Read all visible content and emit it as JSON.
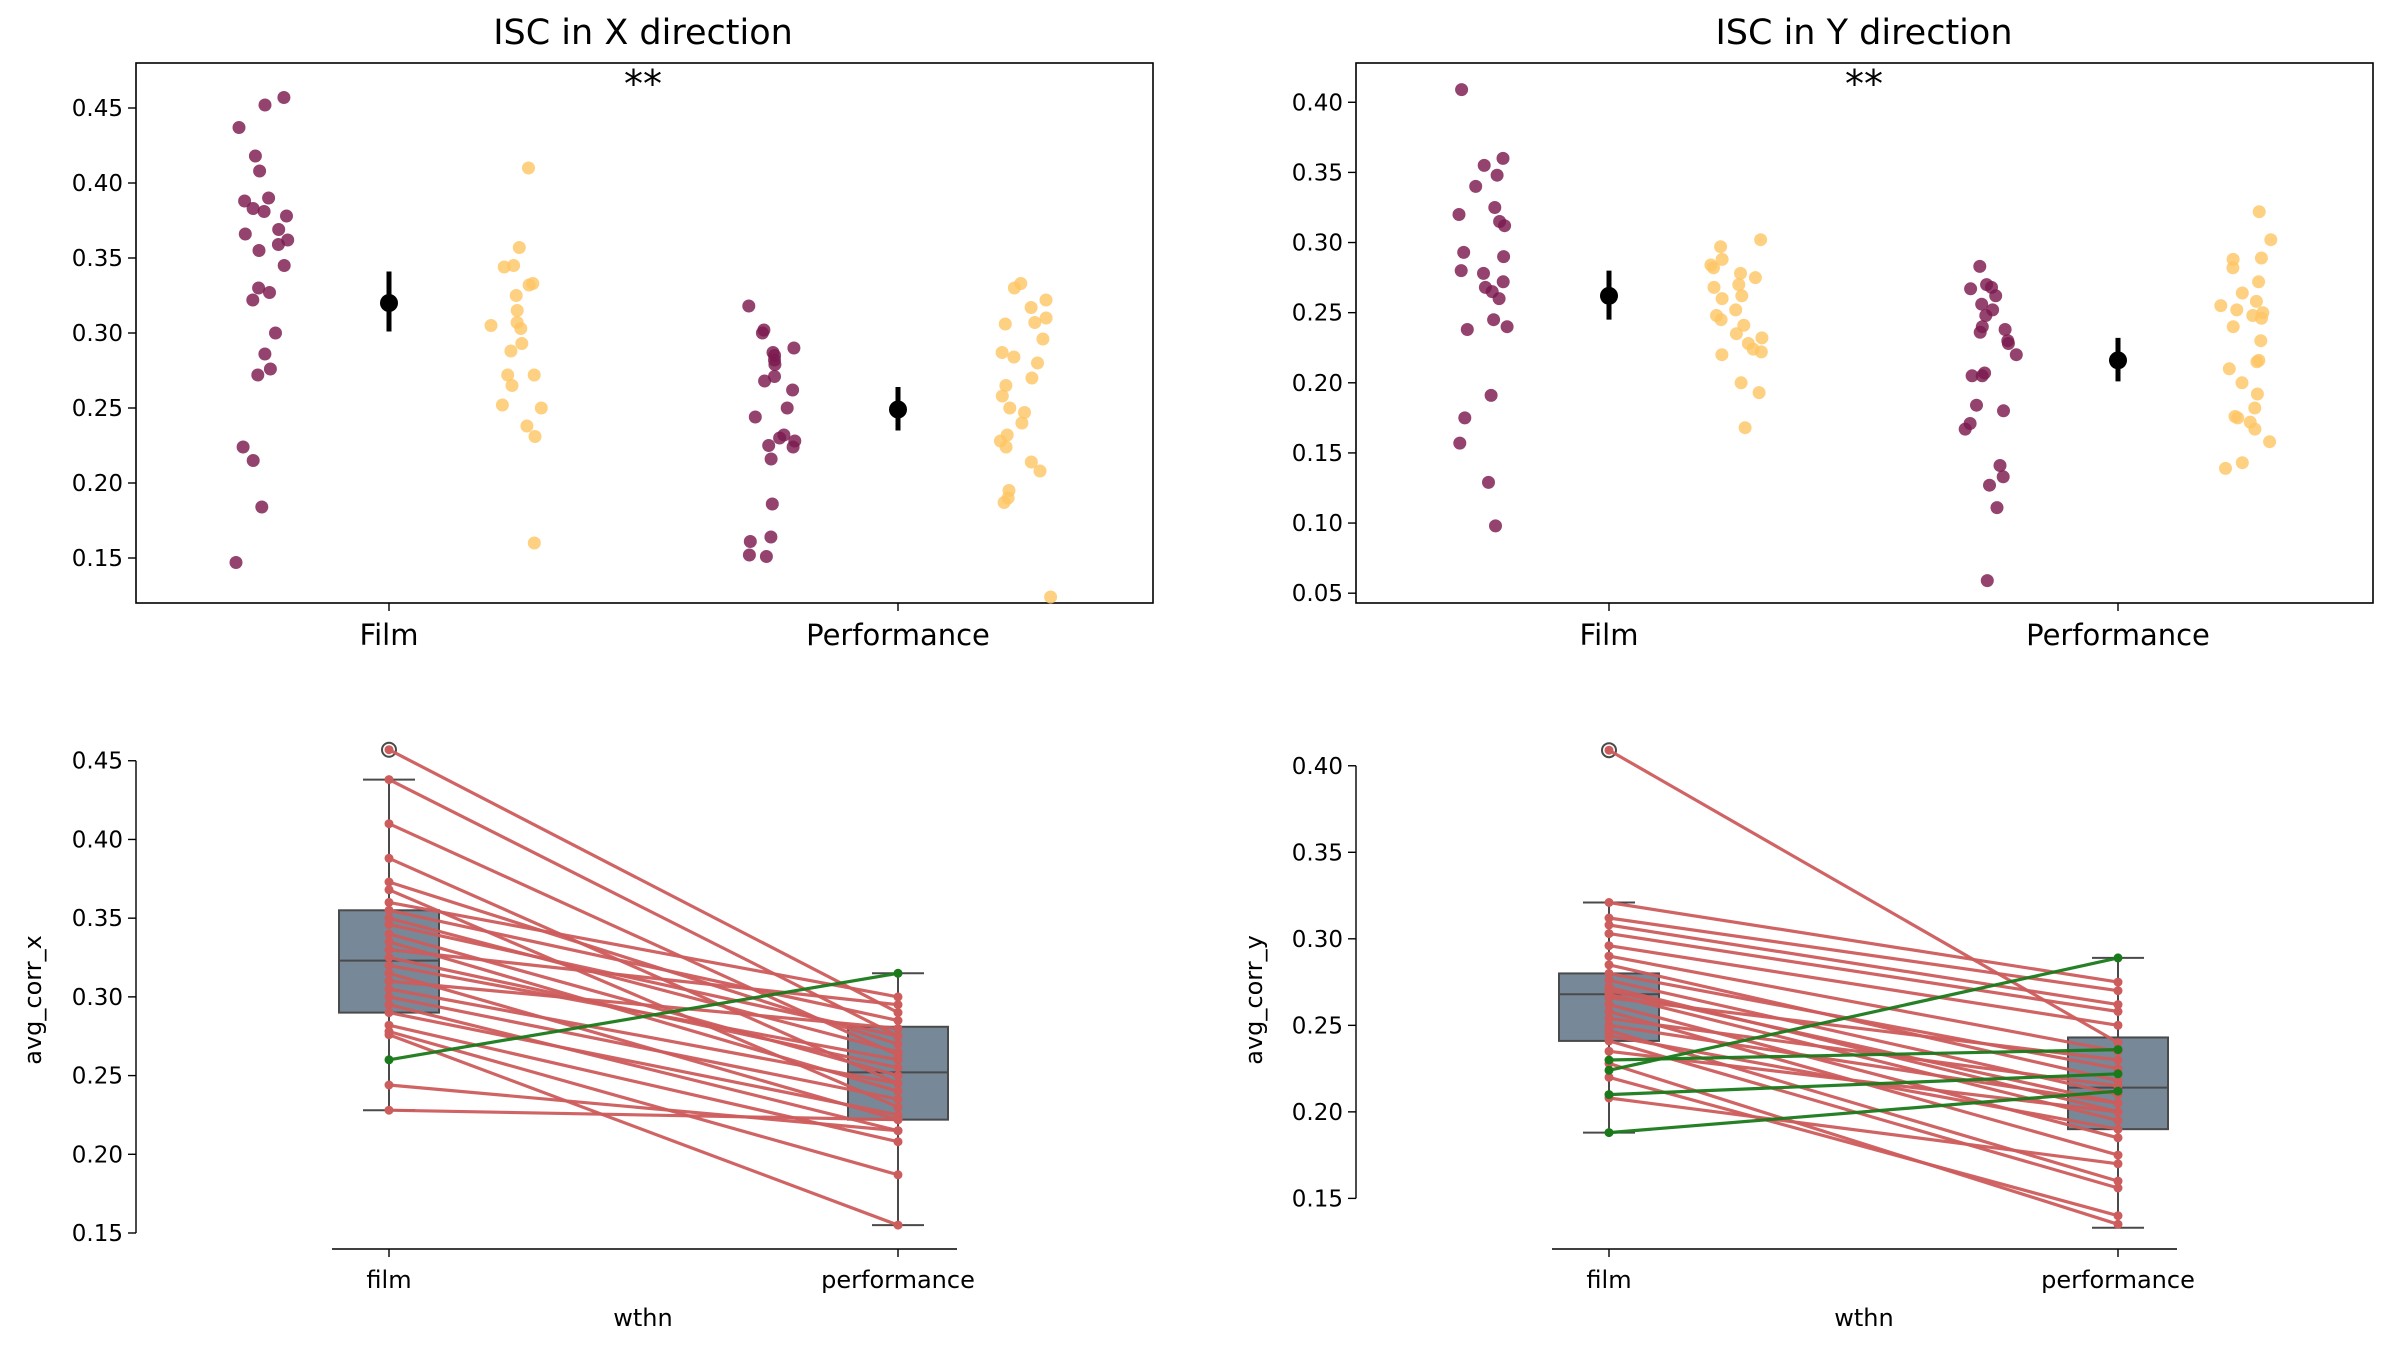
{
  "colors": {
    "film_strip": "#7b1a4e",
    "perf_strip": "#fec665",
    "mean_marker": "#000000",
    "box_fill": "#778899",
    "box_edge": "#4a4a4a",
    "line_decrease": "#cd5c5c",
    "line_increase": "#1a7a1a"
  },
  "chart_data": [
    {
      "type": "scatter",
      "subtype": "strip",
      "title": "ISC in X direction",
      "annotation": "**",
      "xlabel": "",
      "ylabel": "",
      "categories": [
        "Film",
        "Performance"
      ],
      "ylim": [
        0.12,
        0.48
      ],
      "yticks": [
        0.15,
        0.2,
        0.25,
        0.3,
        0.35,
        0.4,
        0.45
      ],
      "series": [
        {
          "name": "Film (left strip)",
          "category": "Film",
          "side": "left",
          "color": "film_strip",
          "values": [
            0.457,
            0.437,
            0.452,
            0.418,
            0.408,
            0.39,
            0.388,
            0.383,
            0.381,
            0.378,
            0.369,
            0.366,
            0.362,
            0.359,
            0.355,
            0.345,
            0.33,
            0.327,
            0.322,
            0.3,
            0.286,
            0.276,
            0.272,
            0.224,
            0.215,
            0.184,
            0.147
          ]
        },
        {
          "name": "Film (right strip)",
          "category": "Film",
          "side": "right",
          "color": "perf_strip",
          "values": [
            0.41,
            0.357,
            0.345,
            0.344,
            0.333,
            0.332,
            0.325,
            0.315,
            0.307,
            0.305,
            0.303,
            0.293,
            0.288,
            0.272,
            0.272,
            0.265,
            0.252,
            0.25,
            0.238,
            0.231,
            0.16
          ]
        },
        {
          "name": "Performance (left strip)",
          "category": "Performance",
          "side": "left",
          "color": "film_strip",
          "values": [
            0.318,
            0.302,
            0.3,
            0.29,
            0.287,
            0.285,
            0.282,
            0.279,
            0.271,
            0.268,
            0.262,
            0.25,
            0.244,
            0.232,
            0.23,
            0.228,
            0.225,
            0.224,
            0.216,
            0.186,
            0.164,
            0.161,
            0.152,
            0.151
          ]
        },
        {
          "name": "Performance (right strip)",
          "category": "Performance",
          "side": "right",
          "color": "perf_strip",
          "values": [
            0.333,
            0.33,
            0.322,
            0.317,
            0.31,
            0.307,
            0.306,
            0.296,
            0.287,
            0.284,
            0.28,
            0.27,
            0.265,
            0.258,
            0.25,
            0.247,
            0.24,
            0.232,
            0.228,
            0.224,
            0.214,
            0.208,
            0.195,
            0.19,
            0.187,
            0.124
          ]
        }
      ],
      "means": [
        {
          "category": "Film",
          "mean": 0.32,
          "ci_low": 0.301,
          "ci_high": 0.341
        },
        {
          "category": "Performance",
          "mean": 0.249,
          "ci_low": 0.235,
          "ci_high": 0.264
        }
      ]
    },
    {
      "type": "scatter",
      "subtype": "strip",
      "title": "ISC in Y direction",
      "annotation": "**",
      "xlabel": "",
      "ylabel": "",
      "categories": [
        "Film",
        "Performance"
      ],
      "ylim": [
        0.043,
        0.428
      ],
      "yticks": [
        0.05,
        0.1,
        0.15,
        0.2,
        0.25,
        0.3,
        0.35,
        0.4
      ],
      "series": [
        {
          "name": "Film (left strip)",
          "category": "Film",
          "side": "left",
          "color": "film_strip",
          "values": [
            0.409,
            0.36,
            0.355,
            0.348,
            0.34,
            0.325,
            0.32,
            0.315,
            0.312,
            0.293,
            0.29,
            0.28,
            0.278,
            0.272,
            0.268,
            0.265,
            0.26,
            0.245,
            0.24,
            0.238,
            0.191,
            0.175,
            0.157,
            0.129,
            0.098
          ]
        },
        {
          "name": "Film (right strip)",
          "category": "Film",
          "side": "right",
          "color": "perf_strip",
          "values": [
            0.302,
            0.297,
            0.288,
            0.284,
            0.282,
            0.278,
            0.275,
            0.27,
            0.268,
            0.262,
            0.26,
            0.252,
            0.248,
            0.245,
            0.241,
            0.235,
            0.232,
            0.228,
            0.224,
            0.222,
            0.22,
            0.2,
            0.193,
            0.168
          ]
        },
        {
          "name": "Performance (left strip)",
          "category": "Performance",
          "side": "left",
          "color": "film_strip",
          "values": [
            0.283,
            0.27,
            0.268,
            0.267,
            0.262,
            0.256,
            0.252,
            0.248,
            0.24,
            0.238,
            0.236,
            0.23,
            0.228,
            0.22,
            0.207,
            0.205,
            0.205,
            0.184,
            0.18,
            0.171,
            0.167,
            0.141,
            0.133,
            0.127,
            0.111,
            0.059
          ]
        },
        {
          "name": "Performance (right strip)",
          "category": "Performance",
          "side": "right",
          "color": "perf_strip",
          "values": [
            0.322,
            0.302,
            0.289,
            0.288,
            0.282,
            0.272,
            0.264,
            0.258,
            0.255,
            0.252,
            0.25,
            0.248,
            0.246,
            0.24,
            0.23,
            0.216,
            0.215,
            0.21,
            0.2,
            0.192,
            0.182,
            0.176,
            0.175,
            0.172,
            0.167,
            0.158,
            0.143,
            0.139
          ]
        }
      ],
      "means": [
        {
          "category": "Film",
          "mean": 0.262,
          "ci_low": 0.245,
          "ci_high": 0.28
        },
        {
          "category": "Performance",
          "mean": 0.216,
          "ci_low": 0.201,
          "ci_high": 0.232
        }
      ]
    },
    {
      "type": "boxplot",
      "subtype": "paired",
      "title": "",
      "xlabel": "wthn",
      "ylabel": "avg_corr_x",
      "categories": [
        "film",
        "performance"
      ],
      "ylim": [
        0.15,
        0.46
      ],
      "yticks": [
        0.15,
        0.2,
        0.25,
        0.3,
        0.35,
        0.4,
        0.45
      ],
      "boxes": [
        {
          "category": "film",
          "whisker_low": 0.228,
          "q1": 0.29,
          "median": 0.323,
          "q3": 0.355,
          "whisker_high": 0.438,
          "outliers": [
            0.457
          ]
        },
        {
          "category": "performance",
          "whisker_low": 0.155,
          "q1": 0.222,
          "median": 0.252,
          "q3": 0.281,
          "whisker_high": 0.315,
          "outliers": []
        }
      ],
      "pairs": [
        [
          0.457,
          0.29
        ],
        [
          0.438,
          0.275
        ],
        [
          0.41,
          0.263
        ],
        [
          0.388,
          0.245
        ],
        [
          0.373,
          0.27
        ],
        [
          0.368,
          0.23
        ],
        [
          0.36,
          0.3
        ],
        [
          0.355,
          0.285
        ],
        [
          0.35,
          0.265
        ],
        [
          0.346,
          0.275
        ],
        [
          0.34,
          0.25
        ],
        [
          0.335,
          0.24
        ],
        [
          0.33,
          0.295
        ],
        [
          0.325,
          0.255
        ],
        [
          0.32,
          0.26
        ],
        [
          0.315,
          0.222
        ],
        [
          0.31,
          0.28
        ],
        [
          0.305,
          0.245
        ],
        [
          0.3,
          0.235
        ],
        [
          0.295,
          0.215
        ],
        [
          0.29,
          0.225
        ],
        [
          0.282,
          0.208
        ],
        [
          0.278,
          0.187
        ],
        [
          0.276,
          0.155
        ],
        [
          0.26,
          0.315
        ],
        [
          0.244,
          0.215
        ],
        [
          0.228,
          0.222
        ]
      ]
    },
    {
      "type": "boxplot",
      "subtype": "paired",
      "title": "",
      "xlabel": "wthn",
      "ylabel": "avg_corr_y",
      "categories": [
        "film",
        "performance"
      ],
      "ylim": [
        0.13,
        0.412
      ],
      "yticks": [
        0.15,
        0.2,
        0.25,
        0.3,
        0.35,
        0.4
      ],
      "boxes": [
        {
          "category": "film",
          "whisker_low": 0.188,
          "q1": 0.241,
          "median": 0.268,
          "q3": 0.28,
          "whisker_high": 0.321,
          "outliers": [
            0.409
          ]
        },
        {
          "category": "performance",
          "whisker_low": 0.133,
          "q1": 0.19,
          "median": 0.214,
          "q3": 0.243,
          "whisker_high": 0.289,
          "outliers": []
        }
      ],
      "pairs": [
        [
          0.409,
          0.24
        ],
        [
          0.321,
          0.275
        ],
        [
          0.312,
          0.27
        ],
        [
          0.308,
          0.262
        ],
        [
          0.303,
          0.258
        ],
        [
          0.296,
          0.25
        ],
        [
          0.29,
          0.235
        ],
        [
          0.285,
          0.218
        ],
        [
          0.28,
          0.225
        ],
        [
          0.276,
          0.21
        ],
        [
          0.272,
          0.2
        ],
        [
          0.27,
          0.205
        ],
        [
          0.268,
          0.195
        ],
        [
          0.266,
          0.23
        ],
        [
          0.262,
          0.185
        ],
        [
          0.258,
          0.175
        ],
        [
          0.254,
          0.215
        ],
        [
          0.25,
          0.205
        ],
        [
          0.247,
          0.16
        ],
        [
          0.244,
          0.19
        ],
        [
          0.241,
          0.156
        ],
        [
          0.235,
          0.2
        ],
        [
          0.228,
          0.135
        ],
        [
          0.22,
          0.14
        ],
        [
          0.208,
          0.17
        ],
        [
          0.23,
          0.236
        ],
        [
          0.224,
          0.289
        ],
        [
          0.21,
          0.222
        ],
        [
          0.188,
          0.212
        ]
      ]
    }
  ]
}
